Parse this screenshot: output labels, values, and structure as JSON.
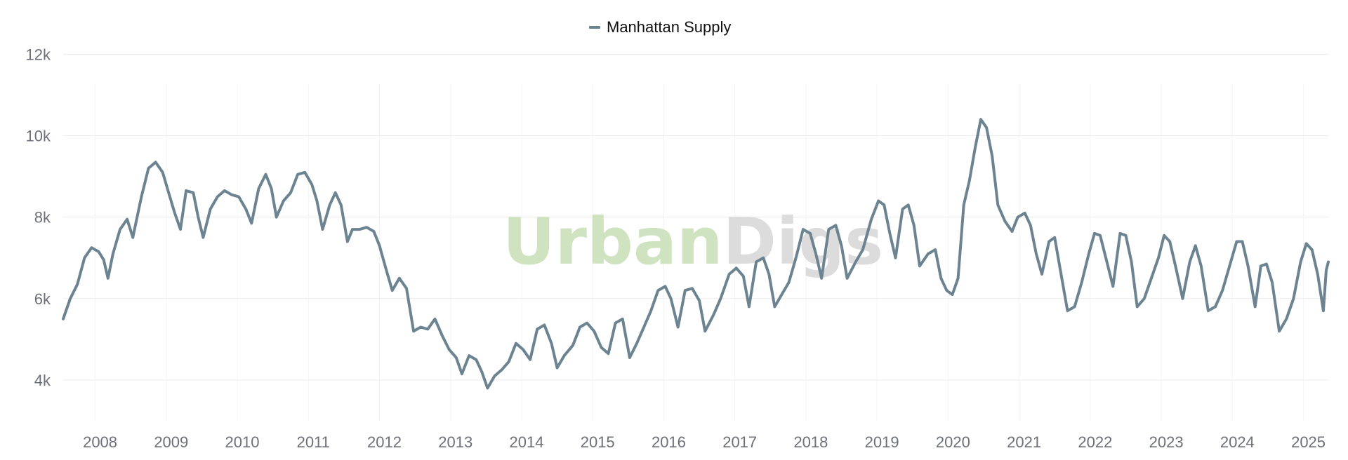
{
  "watermark": {
    "part1": "Urban",
    "part2": "Digs",
    "color1": "#cfe3c0",
    "color2": "#dcdcdc"
  },
  "chart_data": {
    "type": "line",
    "title": "",
    "xlabel": "",
    "ylabel": "",
    "legend_position": "top-center",
    "grid": {
      "horizontal": true,
      "vertical": true
    },
    "xlim": [
      2007.55,
      2025.35
    ],
    "ylim": [
      3000,
      12300
    ],
    "y_ticks": [
      {
        "value": 4000,
        "label": "4k"
      },
      {
        "value": 6000,
        "label": "6k"
      },
      {
        "value": 8000,
        "label": "8k"
      },
      {
        "value": 10000,
        "label": "10k"
      },
      {
        "value": 12000,
        "label": "12k"
      }
    ],
    "x_ticks": [
      {
        "value": 2008,
        "label": "2008"
      },
      {
        "value": 2009,
        "label": "2009"
      },
      {
        "value": 2010,
        "label": "2010"
      },
      {
        "value": 2011,
        "label": "2011"
      },
      {
        "value": 2012,
        "label": "2012"
      },
      {
        "value": 2013,
        "label": "2013"
      },
      {
        "value": 2014,
        "label": "2014"
      },
      {
        "value": 2015,
        "label": "2015"
      },
      {
        "value": 2016,
        "label": "2016"
      },
      {
        "value": 2017,
        "label": "2017"
      },
      {
        "value": 2018,
        "label": "2018"
      },
      {
        "value": 2019,
        "label": "2019"
      },
      {
        "value": 2020,
        "label": "2020"
      },
      {
        "value": 2021,
        "label": "2021"
      },
      {
        "value": 2022,
        "label": "2022"
      },
      {
        "value": 2023,
        "label": "2023"
      },
      {
        "value": 2024,
        "label": "2024"
      },
      {
        "value": 2025,
        "label": "2025"
      }
    ],
    "series": [
      {
        "name": "Manhattan Supply",
        "color": "#6c8391",
        "points": [
          [
            2007.55,
            5500
          ],
          [
            2007.65,
            6000
          ],
          [
            2007.75,
            6350
          ],
          [
            2007.85,
            7000
          ],
          [
            2007.95,
            7250
          ],
          [
            2008.05,
            7150
          ],
          [
            2008.12,
            6950
          ],
          [
            2008.18,
            6500
          ],
          [
            2008.25,
            7100
          ],
          [
            2008.35,
            7700
          ],
          [
            2008.45,
            7950
          ],
          [
            2008.53,
            7500
          ],
          [
            2008.65,
            8500
          ],
          [
            2008.75,
            9200
          ],
          [
            2008.85,
            9350
          ],
          [
            2008.95,
            9100
          ],
          [
            2009.05,
            8500
          ],
          [
            2009.12,
            8100
          ],
          [
            2009.2,
            7700
          ],
          [
            2009.28,
            8650
          ],
          [
            2009.38,
            8600
          ],
          [
            2009.45,
            8000
          ],
          [
            2009.52,
            7500
          ],
          [
            2009.62,
            8200
          ],
          [
            2009.72,
            8500
          ],
          [
            2009.82,
            8650
          ],
          [
            2009.92,
            8550
          ],
          [
            2010.02,
            8500
          ],
          [
            2010.12,
            8200
          ],
          [
            2010.2,
            7850
          ],
          [
            2010.3,
            8700
          ],
          [
            2010.4,
            9050
          ],
          [
            2010.48,
            8700
          ],
          [
            2010.55,
            8000
          ],
          [
            2010.65,
            8400
          ],
          [
            2010.75,
            8600
          ],
          [
            2010.85,
            9050
          ],
          [
            2010.95,
            9100
          ],
          [
            2011.05,
            8800
          ],
          [
            2011.12,
            8400
          ],
          [
            2011.2,
            7700
          ],
          [
            2011.3,
            8300
          ],
          [
            2011.38,
            8600
          ],
          [
            2011.46,
            8300
          ],
          [
            2011.55,
            7400
          ],
          [
            2011.62,
            7700
          ],
          [
            2011.72,
            7700
          ],
          [
            2011.82,
            7750
          ],
          [
            2011.92,
            7650
          ],
          [
            2012.0,
            7300
          ],
          [
            2012.08,
            6800
          ],
          [
            2012.18,
            6200
          ],
          [
            2012.28,
            6500
          ],
          [
            2012.38,
            6250
          ],
          [
            2012.48,
            5200
          ],
          [
            2012.58,
            5300
          ],
          [
            2012.68,
            5250
          ],
          [
            2012.78,
            5500
          ],
          [
            2012.88,
            5100
          ],
          [
            2012.98,
            4750
          ],
          [
            2013.08,
            4550
          ],
          [
            2013.16,
            4150
          ],
          [
            2013.26,
            4600
          ],
          [
            2013.36,
            4500
          ],
          [
            2013.44,
            4200
          ],
          [
            2013.52,
            3800
          ],
          [
            2013.62,
            4100
          ],
          [
            2013.72,
            4250
          ],
          [
            2013.82,
            4450
          ],
          [
            2013.92,
            4900
          ],
          [
            2014.02,
            4750
          ],
          [
            2014.12,
            4500
          ],
          [
            2014.22,
            5250
          ],
          [
            2014.32,
            5350
          ],
          [
            2014.42,
            4900
          ],
          [
            2014.5,
            4300
          ],
          [
            2014.6,
            4600
          ],
          [
            2014.72,
            4850
          ],
          [
            2014.82,
            5300
          ],
          [
            2014.92,
            5400
          ],
          [
            2015.02,
            5200
          ],
          [
            2015.12,
            4800
          ],
          [
            2015.22,
            4650
          ],
          [
            2015.32,
            5400
          ],
          [
            2015.42,
            5500
          ],
          [
            2015.52,
            4550
          ],
          [
            2015.62,
            4900
          ],
          [
            2015.72,
            5300
          ],
          [
            2015.82,
            5700
          ],
          [
            2015.92,
            6200
          ],
          [
            2016.02,
            6300
          ],
          [
            2016.1,
            6000
          ],
          [
            2016.2,
            5300
          ],
          [
            2016.3,
            6200
          ],
          [
            2016.4,
            6250
          ],
          [
            2016.5,
            5950
          ],
          [
            2016.58,
            5200
          ],
          [
            2016.7,
            5600
          ],
          [
            2016.8,
            6000
          ],
          [
            2016.92,
            6600
          ],
          [
            2017.02,
            6750
          ],
          [
            2017.12,
            6550
          ],
          [
            2017.2,
            5800
          ],
          [
            2017.3,
            6900
          ],
          [
            2017.4,
            7000
          ],
          [
            2017.48,
            6600
          ],
          [
            2017.56,
            5800
          ],
          [
            2017.66,
            6100
          ],
          [
            2017.76,
            6400
          ],
          [
            2017.86,
            7000
          ],
          [
            2017.96,
            7700
          ],
          [
            2018.06,
            7600
          ],
          [
            2018.14,
            7100
          ],
          [
            2018.22,
            6500
          ],
          [
            2018.32,
            7700
          ],
          [
            2018.42,
            7800
          ],
          [
            2018.5,
            7300
          ],
          [
            2018.58,
            6500
          ],
          [
            2018.7,
            6900
          ],
          [
            2018.8,
            7200
          ],
          [
            2018.92,
            7950
          ],
          [
            2019.02,
            8400
          ],
          [
            2019.1,
            8300
          ],
          [
            2019.18,
            7600
          ],
          [
            2019.26,
            7000
          ],
          [
            2019.36,
            8200
          ],
          [
            2019.44,
            8300
          ],
          [
            2019.52,
            7800
          ],
          [
            2019.6,
            6800
          ],
          [
            2019.72,
            7100
          ],
          [
            2019.82,
            7200
          ],
          [
            2019.9,
            6500
          ],
          [
            2019.98,
            6200
          ],
          [
            2020.06,
            6100
          ],
          [
            2020.14,
            6500
          ],
          [
            2020.22,
            8300
          ],
          [
            2020.3,
            8900
          ],
          [
            2020.38,
            9700
          ],
          [
            2020.46,
            10400
          ],
          [
            2020.54,
            10200
          ],
          [
            2020.62,
            9500
          ],
          [
            2020.7,
            8300
          ],
          [
            2020.8,
            7900
          ],
          [
            2020.9,
            7650
          ],
          [
            2020.98,
            8000
          ],
          [
            2021.08,
            8100
          ],
          [
            2021.16,
            7800
          ],
          [
            2021.24,
            7100
          ],
          [
            2021.32,
            6600
          ],
          [
            2021.42,
            7400
          ],
          [
            2021.5,
            7500
          ],
          [
            2021.58,
            6700
          ],
          [
            2021.68,
            5700
          ],
          [
            2021.78,
            5800
          ],
          [
            2021.88,
            6400
          ],
          [
            2021.98,
            7100
          ],
          [
            2022.06,
            7600
          ],
          [
            2022.14,
            7550
          ],
          [
            2022.22,
            7000
          ],
          [
            2022.32,
            6300
          ],
          [
            2022.42,
            7600
          ],
          [
            2022.5,
            7550
          ],
          [
            2022.58,
            6900
          ],
          [
            2022.66,
            5800
          ],
          [
            2022.76,
            6000
          ],
          [
            2022.86,
            6500
          ],
          [
            2022.96,
            7000
          ],
          [
            2023.04,
            7550
          ],
          [
            2023.12,
            7400
          ],
          [
            2023.2,
            6800
          ],
          [
            2023.3,
            6000
          ],
          [
            2023.4,
            6900
          ],
          [
            2023.48,
            7300
          ],
          [
            2023.56,
            6800
          ],
          [
            2023.66,
            5700
          ],
          [
            2023.76,
            5800
          ],
          [
            2023.86,
            6200
          ],
          [
            2023.96,
            6800
          ],
          [
            2024.06,
            7400
          ],
          [
            2024.14,
            7400
          ],
          [
            2024.22,
            6800
          ],
          [
            2024.32,
            5800
          ],
          [
            2024.4,
            6800
          ],
          [
            2024.48,
            6850
          ],
          [
            2024.56,
            6400
          ],
          [
            2024.66,
            5200
          ],
          [
            2024.76,
            5500
          ],
          [
            2024.86,
            6000
          ],
          [
            2024.96,
            6900
          ],
          [
            2025.04,
            7350
          ],
          [
            2025.12,
            7200
          ],
          [
            2025.2,
            6600
          ],
          [
            2025.28,
            5700
          ],
          [
            2025.32,
            6700
          ],
          [
            2025.35,
            6900
          ]
        ]
      }
    ]
  }
}
